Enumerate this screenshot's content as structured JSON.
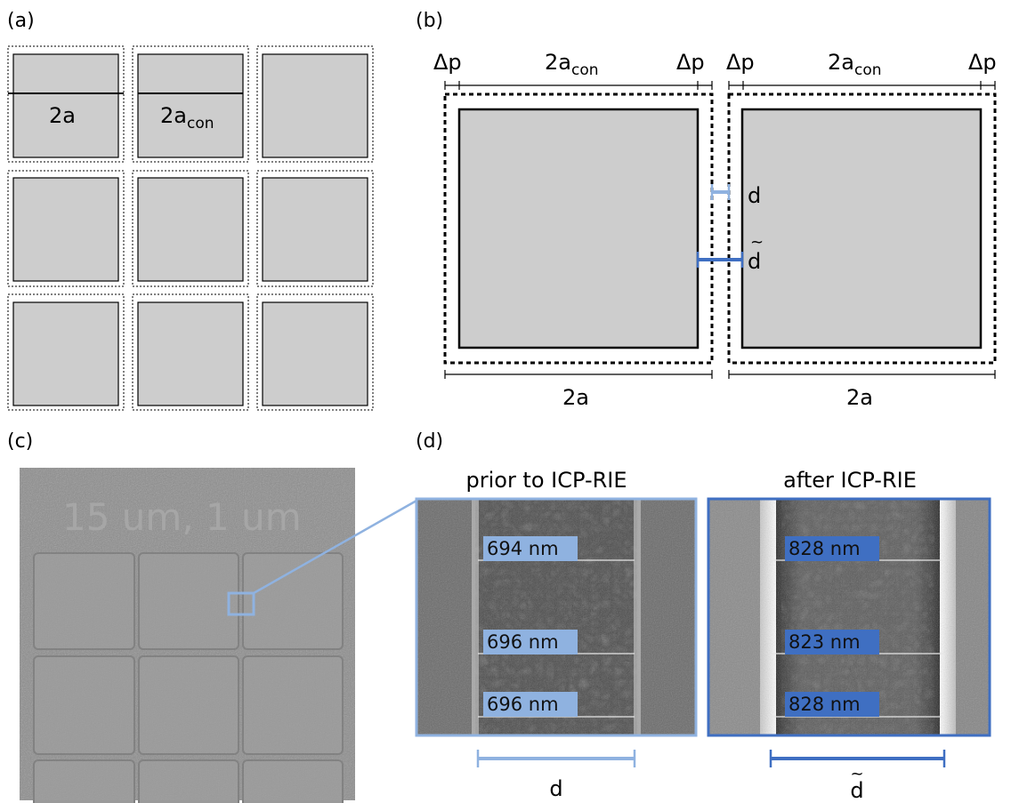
{
  "panels": {
    "a": {
      "label": "(a)",
      "width_label": "2a",
      "contact_label_base": "2a",
      "contact_label_sub": "con"
    },
    "b": {
      "label": "(b)",
      "delta_p": "Δp",
      "contact_base": "2a",
      "contact_sub": "con",
      "gap_label": "d",
      "gap_label_after": "d",
      "tilde": "~",
      "pitch_label": "2a"
    },
    "c": {
      "label": "(c)",
      "sem_text": "15 um, 1 um"
    },
    "d": {
      "label": "(d)",
      "before": {
        "title": "prior to ICP-RIE",
        "measurements": [
          "694 nm",
          "696 nm",
          "696 nm"
        ],
        "scale_label": "d"
      },
      "after": {
        "title": "after ICP-RIE",
        "measurements": [
          "828 nm",
          "823 nm",
          "828 nm"
        ],
        "scale_label": "d",
        "tilde": "~"
      }
    }
  },
  "colors": {
    "pad_fill": "#cdcdcd",
    "light_blue": "#8fb2e0",
    "dark_blue": "#3f6fc2",
    "sem_bg": "#8c8c8c"
  }
}
